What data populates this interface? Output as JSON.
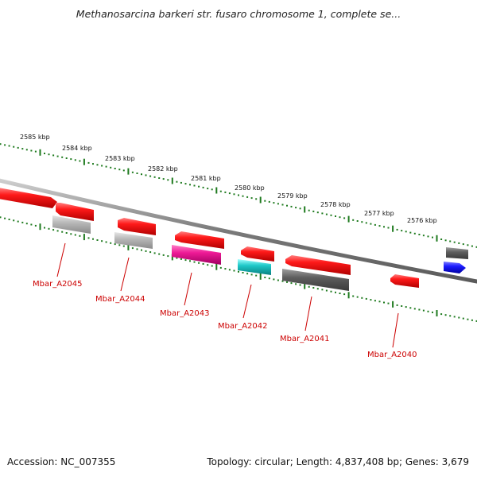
{
  "header": {
    "title": "Methanosarcina barkeri str. fusaro chromosome 1, complete se..."
  },
  "footer": {
    "accession": "Accession: NC_007355",
    "summary": "Topology: circular; Length: 4,837,408 bp; Genes: 3,679"
  },
  "colors": {
    "backbone": "#7a7a7a",
    "tick": "#1e7a1e",
    "gene_label": "#cc0000",
    "red": "#ff1a1a",
    "gray_light": "#b8b8b8",
    "gray_dark": "#5e5e5e",
    "magenta": "#ee1a96",
    "cyan": "#1ec8c8",
    "blue": "#1a1aff"
  },
  "scale_labels": [
    "2585 kbp",
    "2584 kbp",
    "2583 kbp",
    "2582 kbp",
    "2581 kbp",
    "2580 kbp",
    "2579 kbp",
    "2578 kbp",
    "2577 kbp",
    "2576 kbp"
  ],
  "gene_labels": [
    "Mbar_A2045",
    "Mbar_A2044",
    "Mbar_A2043",
    "Mbar_A2042",
    "Mbar_A2041",
    "Mbar_A2040"
  ]
}
